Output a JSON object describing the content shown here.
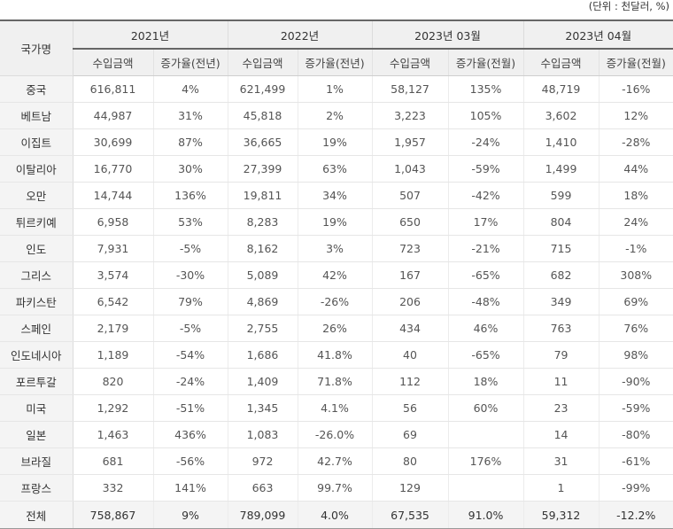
{
  "unit_note": "(단위 : 천달러, %)",
  "header": {
    "country": "국가명",
    "periods": [
      "2021년",
      "2022년",
      "2023년 03월",
      "2023년 04월"
    ],
    "sub_headers": [
      "수입금액",
      "증가율(전년)",
      "수입금액",
      "증가율(전년)",
      "수입금액",
      "증가율(전월)",
      "수입금액",
      "증가율(전월)"
    ]
  },
  "rows": [
    {
      "country": "중국",
      "values": [
        "616,811",
        "4%",
        "621,499",
        "1%",
        "58,127",
        "135%",
        "48,719",
        "-16%"
      ]
    },
    {
      "country": "베트남",
      "values": [
        "44,987",
        "31%",
        "45,818",
        "2%",
        "3,223",
        "105%",
        "3,602",
        "12%"
      ]
    },
    {
      "country": "이집트",
      "values": [
        "30,699",
        "87%",
        "36,665",
        "19%",
        "1,957",
        "-24%",
        "1,410",
        "-28%"
      ]
    },
    {
      "country": "이탈리아",
      "values": [
        "16,770",
        "30%",
        "27,399",
        "63%",
        "1,043",
        "-59%",
        "1,499",
        "44%"
      ]
    },
    {
      "country": "오만",
      "values": [
        "14,744",
        "136%",
        "19,811",
        "34%",
        "507",
        "-42%",
        "599",
        "18%"
      ]
    },
    {
      "country": "튀르키예",
      "values": [
        "6,958",
        "53%",
        "8,283",
        "19%",
        "650",
        "17%",
        "804",
        "24%"
      ]
    },
    {
      "country": "인도",
      "values": [
        "7,931",
        "-5%",
        "8,162",
        "3%",
        "723",
        "-21%",
        "715",
        "-1%"
      ]
    },
    {
      "country": "그리스",
      "values": [
        "3,574",
        "-30%",
        "5,089",
        "42%",
        "167",
        "-65%",
        "682",
        "308%"
      ]
    },
    {
      "country": "파키스탄",
      "values": [
        "6,542",
        "79%",
        "4,869",
        "-26%",
        "206",
        "-48%",
        "349",
        "69%"
      ]
    },
    {
      "country": "스페인",
      "values": [
        "2,179",
        "-5%",
        "2,755",
        "26%",
        "434",
        "46%",
        "763",
        "76%"
      ]
    },
    {
      "country": "인도네시아",
      "values": [
        "1,189",
        "-54%",
        "1,686",
        "41.8%",
        "40",
        "-65%",
        "79",
        "98%"
      ]
    },
    {
      "country": "포르투갈",
      "values": [
        "820",
        "-24%",
        "1,409",
        "71.8%",
        "112",
        "18%",
        "11",
        "-90%"
      ]
    },
    {
      "country": "미국",
      "values": [
        "1,292",
        "-51%",
        "1,345",
        "4.1%",
        "56",
        "60%",
        "23",
        "-59%"
      ]
    },
    {
      "country": "일본",
      "values": [
        "1,463",
        "436%",
        "1,083",
        "-26.0%",
        "69",
        "",
        "14",
        "-80%"
      ]
    },
    {
      "country": "브라질",
      "values": [
        "681",
        "-56%",
        "972",
        "42.7%",
        "80",
        "176%",
        "31",
        "-61%"
      ]
    },
    {
      "country": "프랑스",
      "values": [
        "332",
        "141%",
        "663",
        "99.7%",
        "129",
        "",
        "1",
        "-99%"
      ]
    }
  ],
  "total": {
    "country": "전체",
    "values": [
      "758,867",
      "9%",
      "789,099",
      "4.0%",
      "67,535",
      "91.0%",
      "59,312",
      "-12.2%"
    ]
  }
}
